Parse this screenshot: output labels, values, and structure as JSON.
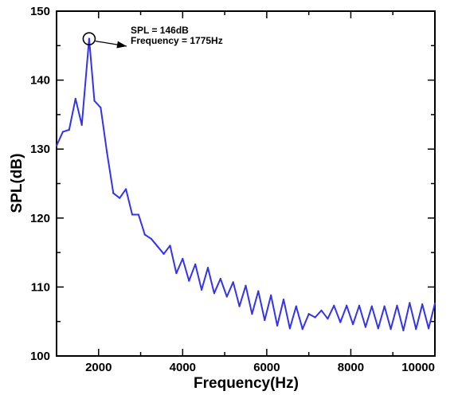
{
  "chart_data": {
    "type": "line",
    "xlabel": "Frequency(Hz)",
    "ylabel": "SPL(dB)",
    "xlim": [
      1000,
      10000
    ],
    "ylim": [
      100,
      150
    ],
    "x_ticks": [
      2000,
      4000,
      6000,
      8000,
      10000
    ],
    "y_ticks": [
      100,
      110,
      120,
      130,
      140,
      150
    ],
    "grid": false,
    "series": [
      {
        "color": "#3333ee",
        "x": [
          1000,
          1150,
          1300,
          1450,
          1600,
          1775,
          1900,
          2050,
          2200,
          2350,
          2500,
          2650,
          2800,
          2950,
          3100,
          3250,
          3400,
          3550,
          3700,
          3850,
          4000,
          4150,
          4300,
          4450,
          4600,
          4750,
          4900,
          5050,
          5200,
          5350,
          5500,
          5650,
          5800,
          5950,
          6100,
          6250,
          6400,
          6550,
          6700,
          6850,
          7000,
          7150,
          7300,
          7450,
          7600,
          7750,
          7900,
          8050,
          8200,
          8350,
          8500,
          8650,
          8800,
          8950,
          9100,
          9250,
          9400,
          9550,
          9700,
          9850,
          10000
        ],
        "y": [
          130.5,
          132.5,
          132.8,
          137.3,
          133.5,
          146.0,
          137.0,
          136.0,
          129.5,
          123.6,
          122.9,
          124.2,
          120.5,
          120.5,
          117.6,
          117.0,
          115.9,
          114.8,
          116.0,
          112.0,
          114.1,
          110.9,
          113.3,
          109.6,
          112.8,
          109.1,
          111.2,
          108.6,
          110.7,
          107.2,
          110.2,
          106.1,
          109.4,
          105.2,
          108.8,
          104.4,
          108.2,
          104.0,
          107.2,
          103.9,
          106.1,
          105.6,
          106.6,
          105.4,
          107.3,
          104.9,
          107.3,
          104.6,
          107.3,
          104.2,
          107.2,
          104.0,
          107.2,
          103.9,
          107.3,
          103.7,
          107.7,
          103.9,
          107.5,
          104.0,
          107.6
        ]
      }
    ],
    "annotations": [
      {
        "lines": [
          "SPL = 146dB",
          "Frequency = 1775Hz"
        ],
        "x": 1775,
        "y": 146
      }
    ]
  }
}
